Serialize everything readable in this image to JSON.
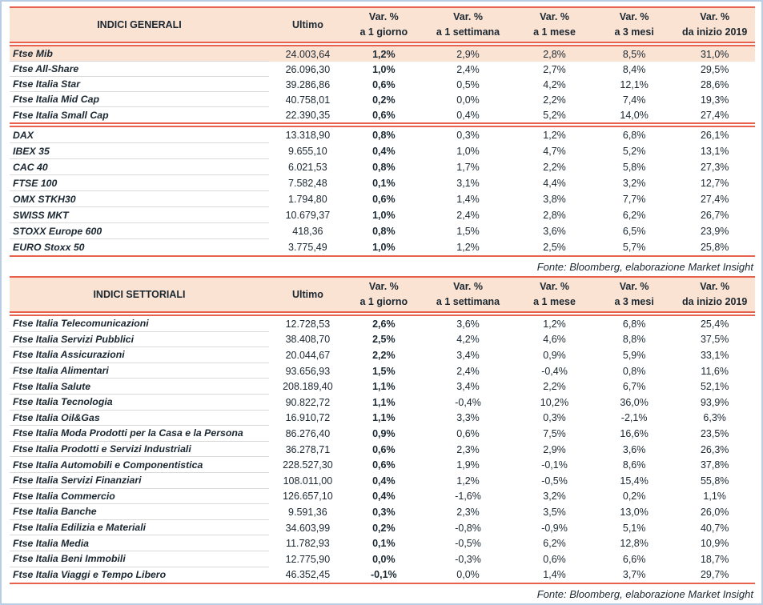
{
  "colors": {
    "accent_line": "#e8614c",
    "header_bg": "#fbe3d3",
    "highlight_row_bg": "#fbe3d3",
    "frame_border": "#b9cde5",
    "text": "#1b2731",
    "row_separator": "#d9d9d9"
  },
  "tables": [
    {
      "title": "INDICI GENERALI",
      "header": {
        "ultimo": "Ultimo",
        "var_cols": [
          {
            "top": "Var. %",
            "bottom": "a 1 giorno"
          },
          {
            "top": "Var. %",
            "bottom": "a 1 settimana"
          },
          {
            "top": "Var. %",
            "bottom": "a 1 mese"
          },
          {
            "top": "Var. %",
            "bottom": "a 3 mesi"
          },
          {
            "top": "Var. %",
            "bottom": "da inizio 2019"
          }
        ]
      },
      "sections": [
        [
          {
            "name": "Ftse Mib",
            "hl": true,
            "values": [
              "24.003,64",
              "1,2%",
              "2,9%",
              "2,8%",
              "8,5%",
              "31,0%"
            ]
          },
          {
            "name": "Ftse All-Share",
            "values": [
              "26.096,30",
              "1,0%",
              "2,4%",
              "2,7%",
              "8,4%",
              "29,5%"
            ]
          },
          {
            "name": "Ftse Italia Star",
            "values": [
              "39.286,86",
              "0,6%",
              "0,5%",
              "4,2%",
              "12,1%",
              "28,6%"
            ]
          },
          {
            "name": "Ftse Italia Mid Cap",
            "values": [
              "40.758,01",
              "0,2%",
              "0,0%",
              "2,2%",
              "7,4%",
              "19,3%"
            ]
          },
          {
            "name": "Ftse Italia Small Cap",
            "values": [
              "22.390,35",
              "0,6%",
              "0,4%",
              "5,2%",
              "14,0%",
              "27,4%"
            ]
          }
        ],
        [
          {
            "name": "DAX",
            "values": [
              "13.318,90",
              "0,8%",
              "0,3%",
              "1,2%",
              "6,8%",
              "26,1%"
            ]
          },
          {
            "name": "IBEX 35",
            "values": [
              "9.655,10",
              "0,4%",
              "1,0%",
              "4,7%",
              "5,2%",
              "13,1%"
            ]
          },
          {
            "name": "CAC 40",
            "values": [
              "6.021,53",
              "0,8%",
              "1,7%",
              "2,2%",
              "5,8%",
              "27,3%"
            ]
          },
          {
            "name": "FTSE 100",
            "values": [
              "7.582,48",
              "0,1%",
              "3,1%",
              "4,4%",
              "3,2%",
              "12,7%"
            ]
          },
          {
            "name": "OMX STKH30",
            "values": [
              "1.794,80",
              "0,6%",
              "1,4%",
              "3,8%",
              "7,7%",
              "27,4%"
            ]
          },
          {
            "name": "SWISS MKT",
            "values": [
              "10.679,37",
              "1,0%",
              "2,4%",
              "2,8%",
              "6,2%",
              "26,7%"
            ]
          },
          {
            "name": "STOXX Europe 600",
            "values": [
              "418,36",
              "0,8%",
              "1,5%",
              "3,6%",
              "6,5%",
              "23,9%"
            ]
          },
          {
            "name": "EURO Stoxx 50",
            "values": [
              "3.775,49",
              "1,0%",
              "1,2%",
              "2,5%",
              "5,7%",
              "25,8%"
            ]
          }
        ]
      ],
      "source": "Fonte: Bloomberg, elaborazione Market Insight"
    },
    {
      "title": "INDICI SETTORIALI",
      "header": {
        "ultimo": "Ultimo",
        "var_cols": [
          {
            "top": "Var. %",
            "bottom": "a 1 giorno"
          },
          {
            "top": "Var. %",
            "bottom": "a 1 settimana"
          },
          {
            "top": "Var. %",
            "bottom": "a 1 mese"
          },
          {
            "top": "Var. %",
            "bottom": "a 3 mesi"
          },
          {
            "top": "Var. %",
            "bottom": "da inizio 2019"
          }
        ]
      },
      "sections": [
        [
          {
            "name": "Ftse Italia Telecomunicazioni",
            "values": [
              "12.728,53",
              "2,6%",
              "3,6%",
              "1,2%",
              "6,8%",
              "25,4%"
            ]
          },
          {
            "name": "Ftse Italia Servizi Pubblici",
            "values": [
              "38.408,70",
              "2,5%",
              "4,2%",
              "4,6%",
              "8,8%",
              "37,5%"
            ]
          },
          {
            "name": "Ftse Italia Assicurazioni",
            "values": [
              "20.044,67",
              "2,2%",
              "3,4%",
              "0,9%",
              "5,9%",
              "33,1%"
            ]
          },
          {
            "name": "Ftse Italia Alimentari",
            "values": [
              "93.656,93",
              "1,5%",
              "2,4%",
              "-0,4%",
              "0,8%",
              "11,6%"
            ]
          },
          {
            "name": "Ftse Italia Salute",
            "values": [
              "208.189,40",
              "1,1%",
              "3,4%",
              "2,2%",
              "6,7%",
              "52,1%"
            ]
          },
          {
            "name": "Ftse Italia Tecnologia",
            "values": [
              "90.822,72",
              "1,1%",
              "-0,4%",
              "10,2%",
              "36,0%",
              "93,9%"
            ]
          },
          {
            "name": "Ftse Italia Oil&Gas",
            "values": [
              "16.910,72",
              "1,1%",
              "3,3%",
              "0,3%",
              "-2,1%",
              "6,3%"
            ]
          },
          {
            "name": "Ftse Italia Moda Prodotti per la Casa e la Persona",
            "values": [
              "86.276,40",
              "0,9%",
              "0,6%",
              "7,5%",
              "16,6%",
              "23,5%"
            ]
          },
          {
            "name": "Ftse Italia Prodotti e Servizi Industriali",
            "values": [
              "36.278,71",
              "0,6%",
              "2,3%",
              "2,9%",
              "3,6%",
              "26,3%"
            ]
          },
          {
            "name": "Ftse Italia Automobili e Componentistica",
            "values": [
              "228.527,30",
              "0,6%",
              "1,9%",
              "-0,1%",
              "8,6%",
              "37,8%"
            ]
          },
          {
            "name": "Ftse Italia Servizi Finanziari",
            "values": [
              "108.011,00",
              "0,4%",
              "1,2%",
              "-0,5%",
              "15,4%",
              "55,8%"
            ]
          },
          {
            "name": "Ftse Italia Commercio",
            "values": [
              "126.657,10",
              "0,4%",
              "-1,6%",
              "3,2%",
              "0,2%",
              "1,1%"
            ]
          },
          {
            "name": "Ftse Italia Banche",
            "values": [
              "9.591,36",
              "0,3%",
              "2,3%",
              "3,5%",
              "13,0%",
              "26,0%"
            ]
          },
          {
            "name": "Ftse Italia Edilizia e Materiali",
            "values": [
              "34.603,99",
              "0,2%",
              "-0,8%",
              "-0,9%",
              "5,1%",
              "40,7%"
            ]
          },
          {
            "name": "Ftse Italia Media",
            "values": [
              "11.782,93",
              "0,1%",
              "-0,5%",
              "6,2%",
              "12,8%",
              "10,9%"
            ]
          },
          {
            "name": "Ftse Italia Beni Immobili",
            "values": [
              "12.775,90",
              "0,0%",
              "-0,3%",
              "0,6%",
              "6,6%",
              "18,7%"
            ]
          },
          {
            "name": "Ftse Italia Viaggi e Tempo Libero",
            "values": [
              "46.352,45",
              "-0,1%",
              "0,0%",
              "1,4%",
              "3,7%",
              "29,7%"
            ]
          }
        ]
      ],
      "source": "Fonte: Bloomberg, elaborazione Market Insight"
    }
  ]
}
